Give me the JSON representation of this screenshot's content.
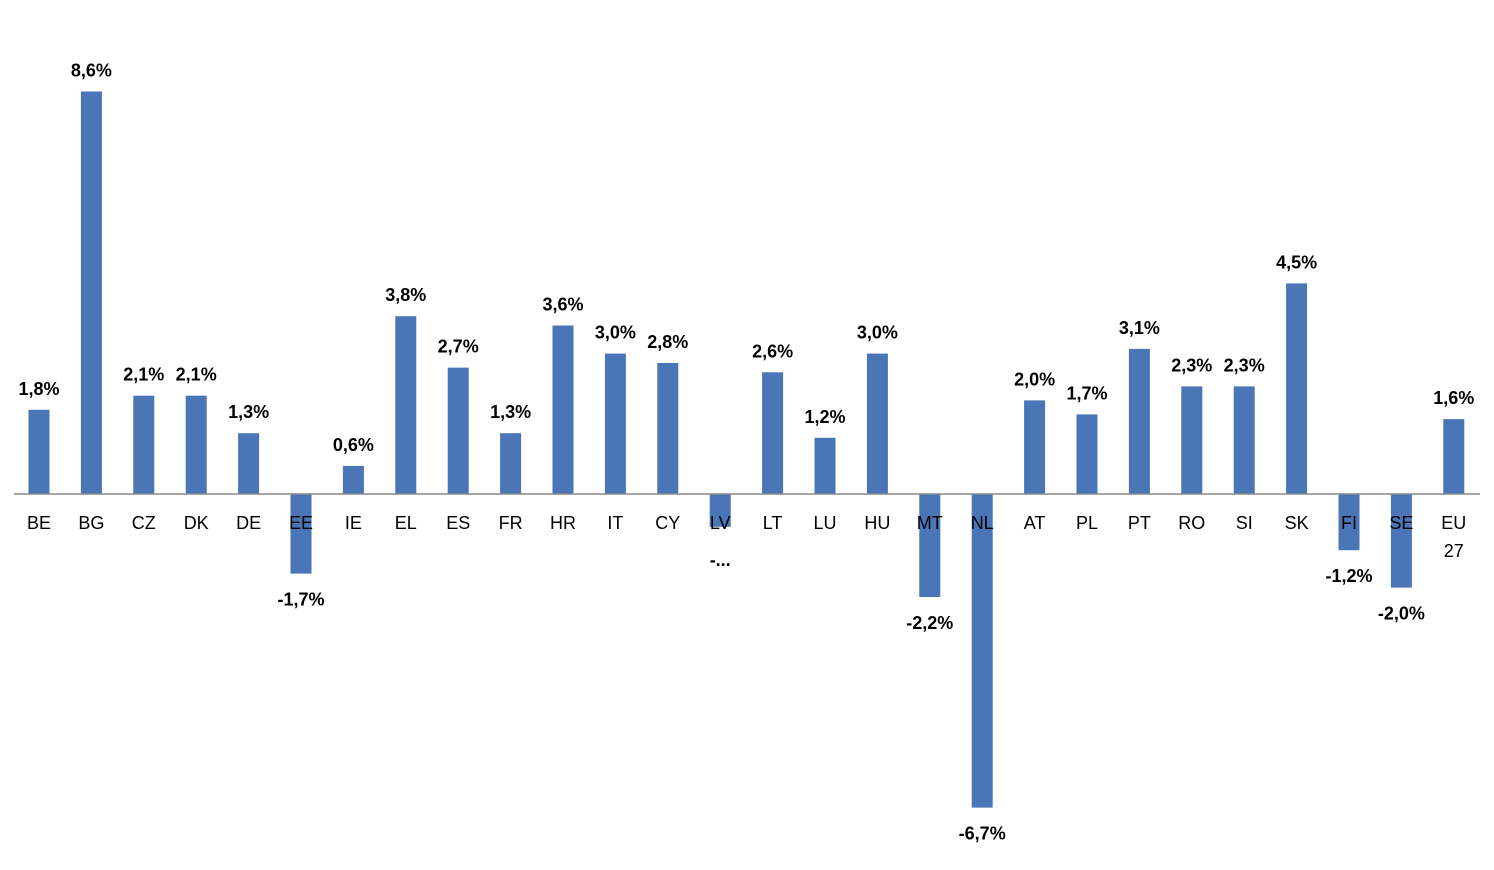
{
  "chart_data": {
    "type": "bar",
    "title": "",
    "xlabel": "",
    "ylabel": "",
    "categories": [
      "BE",
      "BG",
      "CZ",
      "DK",
      "DE",
      "EE",
      "IE",
      "EL",
      "ES",
      "FR",
      "HR",
      "IT",
      "CY",
      "LV",
      "LT",
      "LU",
      "HU",
      "MT",
      "NL",
      "AT",
      "PL",
      "PT",
      "RO",
      "SI",
      "SK",
      "FI",
      "SE",
      "EU 27"
    ],
    "values": [
      1.8,
      8.6,
      2.1,
      2.1,
      1.3,
      -1.7,
      0.6,
      3.8,
      2.7,
      1.3,
      3.6,
      3.0,
      2.8,
      -0.7,
      2.6,
      1.2,
      3.0,
      -2.2,
      -6.7,
      2.0,
      1.7,
      3.1,
      2.3,
      2.3,
      4.5,
      -1.2,
      -2.0,
      1.6
    ],
    "data_labels": [
      "1,8%",
      "8,6%",
      "2,1%",
      "2,1%",
      "1,3%",
      "-1,7%",
      "0,6%",
      "3,8%",
      "2,7%",
      "1,3%",
      "3,6%",
      "3,0%",
      "2,8%",
      "-...",
      "2,6%",
      "1,2%",
      "3,0%",
      "-2,2%",
      "-6,7%",
      "2,0%",
      "1,7%",
      "3,1%",
      "2,3%",
      "2,3%",
      "4,5%",
      "-1,2%",
      "-2,0%",
      "1,6%"
    ],
    "ylim": [
      -7.2,
      9.4
    ],
    "grid": false,
    "legend": "none",
    "bar_color": "#4a76b7"
  }
}
